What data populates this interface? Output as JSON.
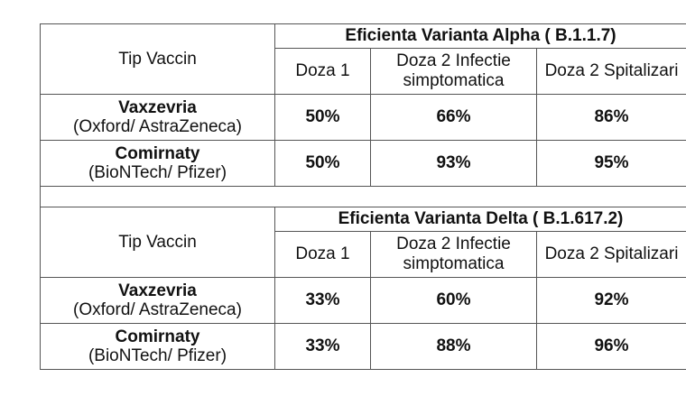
{
  "alpha": {
    "title": "Eficienta Varianta Alpha ( B.1.1.7)",
    "type_label": "Tip Vaccin",
    "columns": [
      "Doza 1",
      "Doza 2 Infectie simptomatica",
      "Doza 2 Spitalizari"
    ],
    "rows": [
      {
        "name": "Vaxzevria",
        "maker": "(Oxford/ AstraZeneca)",
        "values": [
          "50%",
          "66%",
          "86%"
        ]
      },
      {
        "name": "Comirnaty",
        "maker": "(BioNTech/ Pfizer)",
        "values": [
          "50%",
          "93%",
          "95%"
        ]
      }
    ]
  },
  "delta": {
    "title": "Eficienta Varianta Delta ( B.1.617.2)",
    "type_label": "Tip Vaccin",
    "columns": [
      "Doza 1",
      "Doza 2 Infectie simptomatica",
      "Doza 2 Spitalizari"
    ],
    "rows": [
      {
        "name": "Vaxzevria",
        "maker": "(Oxford/ AstraZeneca)",
        "values": [
          "33%",
          "60%",
          "92%"
        ]
      },
      {
        "name": "Comirnaty",
        "maker": "(BioNTech/ Pfizer)",
        "values": [
          "33%",
          "88%",
          "96%"
        ]
      }
    ]
  }
}
